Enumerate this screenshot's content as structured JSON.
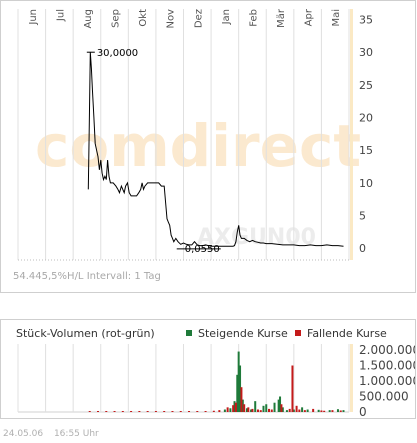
{
  "watermark": "comdirect",
  "ticker_watermark": "AXGUN00",
  "info": {
    "pct": "54.445,5%",
    "hl": "H/L",
    "interval": "Intervall: 1 Tag"
  },
  "footer": {
    "date": "24.05.06",
    "time": "16:55 Uhr"
  },
  "colors": {
    "up": "#1f7a3a",
    "down": "#c41a1a",
    "line": "#000000",
    "axis_band": "#fbe9c4",
    "grid": "#e0e0e0",
    "watermark_orange": "#fbe9cf",
    "watermark_gray": "#ececec"
  },
  "chart_data": [
    {
      "type": "line",
      "title": "",
      "x_labels": [
        "Jun",
        "Jul",
        "Aug",
        "Sep",
        "Okt",
        "Nov",
        "Dez",
        "Jan",
        "Feb",
        "Mär",
        "Apr",
        "Mai"
      ],
      "y_ticks": [
        0,
        5,
        10,
        15,
        20,
        25,
        30,
        35
      ],
      "ylim": [
        -1.5,
        36
      ],
      "annotations": [
        {
          "label": "30,0000",
          "x": 2.64,
          "y": 30.0
        },
        {
          "label": "0,0550",
          "x": 5.9,
          "y": 0.05
        }
      ],
      "series": [
        {
          "values": [
            [
              2.55,
              9.0
            ],
            [
              2.58,
              18.0
            ],
            [
              2.62,
              30.0
            ],
            [
              2.66,
              27.5
            ],
            [
              2.7,
              24.0
            ],
            [
              2.75,
              20.0
            ],
            [
              2.8,
              16.0
            ],
            [
              2.85,
              15.0
            ],
            [
              2.9,
              14.0
            ],
            [
              2.95,
              12.0
            ],
            [
              3.0,
              13.5
            ],
            [
              3.05,
              11.5
            ],
            [
              3.1,
              10.5
            ],
            [
              3.15,
              11.0
            ],
            [
              3.2,
              10.5
            ],
            [
              3.25,
              13.5
            ],
            [
              3.3,
              11.0
            ],
            [
              3.35,
              10.0
            ],
            [
              3.45,
              10.0
            ],
            [
              3.55,
              9.5
            ],
            [
              3.62,
              9.0
            ],
            [
              3.68,
              8.5
            ],
            [
              3.75,
              9.5
            ],
            [
              3.8,
              9.0
            ],
            [
              3.85,
              8.5
            ],
            [
              3.9,
              9.5
            ],
            [
              3.97,
              10.0
            ],
            [
              4.03,
              8.5
            ],
            [
              4.1,
              8.0
            ],
            [
              4.2,
              8.0
            ],
            [
              4.3,
              8.0
            ],
            [
              4.38,
              8.5
            ],
            [
              4.45,
              9.0
            ],
            [
              4.5,
              10.0
            ],
            [
              4.55,
              9.0
            ],
            [
              4.6,
              9.5
            ],
            [
              4.7,
              10.0
            ],
            [
              4.85,
              10.0
            ],
            [
              5.0,
              10.0
            ],
            [
              5.1,
              10.0
            ],
            [
              5.2,
              9.5
            ],
            [
              5.3,
              9.5
            ],
            [
              5.35,
              7.0
            ],
            [
              5.4,
              4.5
            ],
            [
              5.45,
              4.0
            ],
            [
              5.5,
              3.5
            ],
            [
              5.55,
              2.0
            ],
            [
              5.6,
              1.5
            ],
            [
              5.65,
              1.0
            ],
            [
              5.72,
              1.5
            ],
            [
              5.8,
              1.0
            ],
            [
              5.9,
              0.6
            ],
            [
              6.0,
              0.8
            ],
            [
              6.1,
              0.6
            ],
            [
              6.2,
              0.5
            ],
            [
              6.3,
              0.5
            ],
            [
              6.4,
              1.0
            ],
            [
              6.5,
              0.5
            ],
            [
              6.6,
              0.4
            ],
            [
              6.7,
              0.4
            ],
            [
              6.8,
              0.5
            ],
            [
              6.9,
              0.4
            ],
            [
              7.0,
              0.3
            ],
            [
              7.1,
              0.3
            ],
            [
              7.2,
              0.3
            ],
            [
              7.3,
              0.3
            ],
            [
              7.4,
              0.3
            ],
            [
              7.5,
              0.3
            ],
            [
              7.6,
              0.3
            ],
            [
              7.7,
              0.3
            ],
            [
              7.8,
              0.3
            ],
            [
              7.85,
              0.4
            ],
            [
              7.9,
              1.0
            ],
            [
              7.95,
              2.5
            ],
            [
              8.0,
              3.5
            ],
            [
              8.05,
              2.0
            ],
            [
              8.1,
              1.5
            ],
            [
              8.2,
              1.5
            ],
            [
              8.3,
              1.2
            ],
            [
              8.4,
              1.0
            ],
            [
              8.5,
              1.2
            ],
            [
              8.6,
              1.0
            ],
            [
              8.7,
              0.9
            ],
            [
              8.8,
              0.8
            ],
            [
              8.9,
              0.8
            ],
            [
              9.0,
              0.7
            ],
            [
              9.2,
              0.7
            ],
            [
              9.4,
              0.6
            ],
            [
              9.6,
              0.5
            ],
            [
              9.8,
              0.5
            ],
            [
              10.0,
              0.5
            ],
            [
              10.2,
              0.4
            ],
            [
              10.4,
              0.4
            ],
            [
              10.6,
              0.5
            ],
            [
              10.8,
              0.4
            ],
            [
              11.0,
              0.4
            ],
            [
              11.2,
              0.5
            ],
            [
              11.4,
              0.4
            ],
            [
              11.6,
              0.4
            ],
            [
              11.8,
              0.3
            ]
          ]
        }
      ]
    },
    {
      "type": "bar",
      "title": "Stück-Volumen (rot-grün)",
      "y_ticks": [
        "0",
        "500.000",
        "1.000.000",
        "1.500.000",
        "2.000.000"
      ],
      "y_values": [
        0,
        500000,
        1000000,
        1500000,
        2000000
      ],
      "ylim": [
        0,
        2000000
      ],
      "series": [
        {
          "name": "Steigende Kurse",
          "values": [
            [
              7.5,
              80000
            ],
            [
              7.7,
              120000
            ],
            [
              7.85,
              350000
            ],
            [
              7.95,
              1200000
            ],
            [
              8.0,
              1950000
            ],
            [
              8.05,
              1500000
            ],
            [
              8.15,
              400000
            ],
            [
              8.3,
              120000
            ],
            [
              8.45,
              80000
            ],
            [
              8.6,
              350000
            ],
            [
              8.9,
              200000
            ],
            [
              9.0,
              250000
            ],
            [
              9.3,
              300000
            ],
            [
              9.45,
              400000
            ],
            [
              9.5,
              500000
            ],
            [
              9.6,
              150000
            ],
            [
              9.75,
              60000
            ],
            [
              10.0,
              80000
            ],
            [
              10.3,
              150000
            ],
            [
              10.5,
              80000
            ],
            [
              10.9,
              70000
            ],
            [
              11.3,
              60000
            ],
            [
              11.6,
              90000
            ],
            [
              11.8,
              60000
            ]
          ]
        },
        {
          "name": "Fallende Kurse",
          "values": [
            [
              2.6,
              30000
            ],
            [
              2.9,
              20000
            ],
            [
              3.2,
              25000
            ],
            [
              3.5,
              20000
            ],
            [
              3.8,
              25000
            ],
            [
              4.1,
              20000
            ],
            [
              4.4,
              25000
            ],
            [
              4.7,
              20000
            ],
            [
              5.0,
              25000
            ],
            [
              5.3,
              20000
            ],
            [
              5.6,
              30000
            ],
            [
              5.9,
              25000
            ],
            [
              6.2,
              20000
            ],
            [
              6.5,
              25000
            ],
            [
              6.8,
              30000
            ],
            [
              7.1,
              40000
            ],
            [
              7.3,
              60000
            ],
            [
              7.6,
              150000
            ],
            [
              7.8,
              220000
            ],
            [
              7.9,
              300000
            ],
            [
              8.1,
              800000
            ],
            [
              8.2,
              250000
            ],
            [
              8.35,
              150000
            ],
            [
              8.5,
              100000
            ],
            [
              8.7,
              80000
            ],
            [
              8.8,
              60000
            ],
            [
              9.1,
              100000
            ],
            [
              9.2,
              80000
            ],
            [
              9.55,
              250000
            ],
            [
              9.85,
              100000
            ],
            [
              9.95,
              1500000
            ],
            [
              10.1,
              200000
            ],
            [
              10.2,
              80000
            ],
            [
              10.4,
              60000
            ],
            [
              10.7,
              100000
            ],
            [
              11.0,
              50000
            ],
            [
              11.1,
              40000
            ],
            [
              11.4,
              60000
            ],
            [
              11.7,
              50000
            ]
          ]
        }
      ]
    }
  ]
}
